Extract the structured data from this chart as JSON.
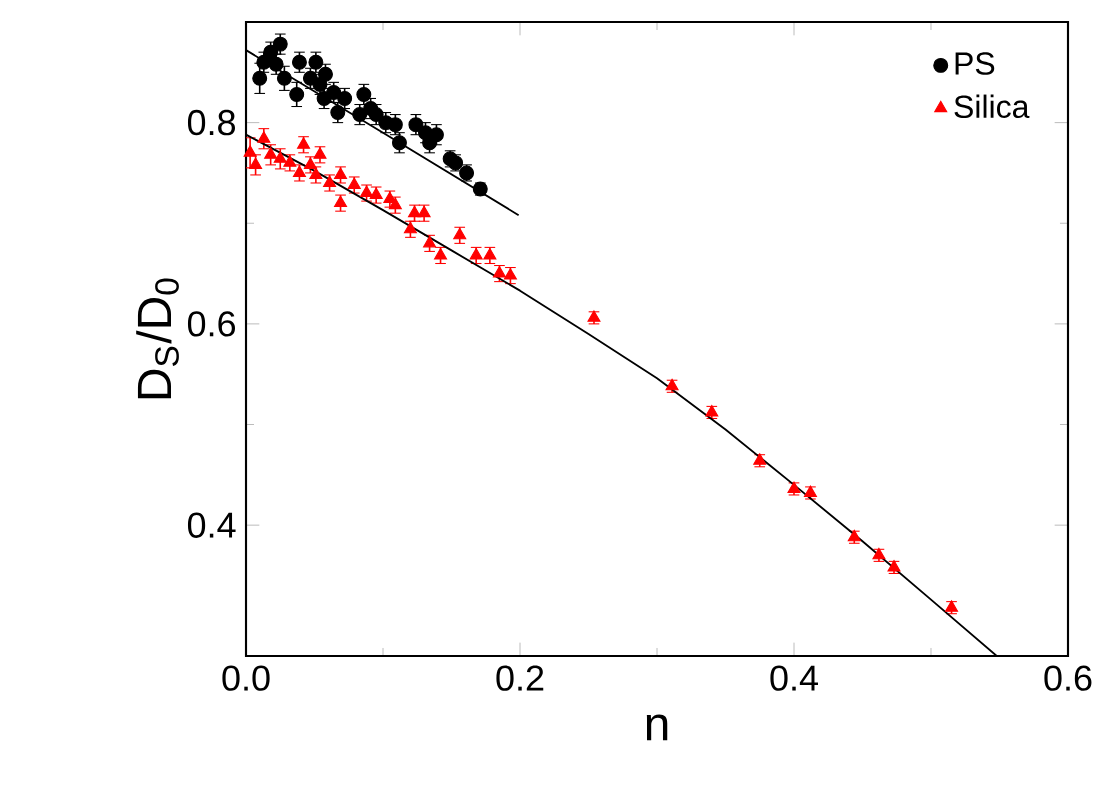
{
  "chart_data": {
    "type": "scatter",
    "xlabel": "n",
    "ylabel": "D$_{S}$/D$_{0}$",
    "xlim": [
      0,
      0.6
    ],
    "ylim": [
      0.27,
      0.9
    ],
    "xticks": [
      {
        "value": 0,
        "label": "0.0"
      },
      {
        "value": 0.2,
        "label": "0.2"
      },
      {
        "value": 0.4,
        "label": "0.4"
      },
      {
        "value": 0.6,
        "label": "0.6"
      }
    ],
    "yticks": [
      0.4,
      0.6,
      0.8
    ],
    "legend": "top right",
    "grid": false,
    "series": [
      {
        "name": "PS",
        "color": "#000000",
        "marker": "circle",
        "x": [
          0.013,
          0.01,
          0.018,
          0.025,
          0.022,
          0.028,
          0.037,
          0.039,
          0.047,
          0.051,
          0.054,
          0.058,
          0.064,
          0.057,
          0.067,
          0.072,
          0.086,
          0.083,
          0.091,
          0.095,
          0.102,
          0.109,
          0.112,
          0.124,
          0.131,
          0.134,
          0.139,
          0.149,
          0.153,
          0.161,
          0.171
        ],
        "values": [
          0.86,
          0.844,
          0.87,
          0.878,
          0.858,
          0.844,
          0.828,
          0.86,
          0.844,
          0.86,
          0.838,
          0.848,
          0.83,
          0.824,
          0.81,
          0.824,
          0.828,
          0.808,
          0.814,
          0.808,
          0.8,
          0.798,
          0.78,
          0.798,
          0.79,
          0.78,
          0.788,
          0.764,
          0.76,
          0.75,
          0.734
        ],
        "errors": [
          0.01,
          0.015,
          0.01,
          0.01,
          0.01,
          0.012,
          0.012,
          0.01,
          0.01,
          0.01,
          0.01,
          0.01,
          0.01,
          0.01,
          0.01,
          0.01,
          0.01,
          0.01,
          0.01,
          0.01,
          0.01,
          0.01,
          0.01,
          0.01,
          0.01,
          0.01,
          0.01,
          0.008,
          0.008,
          0.008,
          0.006
        ]
      },
      {
        "name": "Silica",
        "color": "#ff0000",
        "marker": "triangle",
        "x": [
          0.003,
          0.013,
          0.007,
          0.018,
          0.025,
          0.032,
          0.042,
          0.039,
          0.047,
          0.054,
          0.051,
          0.061,
          0.069,
          0.069,
          0.079,
          0.088,
          0.095,
          0.105,
          0.109,
          0.12,
          0.123,
          0.13,
          0.134,
          0.142,
          0.156,
          0.168,
          0.178,
          0.185,
          0.193,
          0.254,
          0.311,
          0.34,
          0.375,
          0.4,
          0.412,
          0.444,
          0.462,
          0.473,
          0.515
        ],
        "values": [
          0.77,
          0.784,
          0.758,
          0.768,
          0.764,
          0.76,
          0.778,
          0.75,
          0.758,
          0.768,
          0.748,
          0.74,
          0.748,
          0.72,
          0.738,
          0.73,
          0.728,
          0.724,
          0.718,
          0.694,
          0.71,
          0.71,
          0.68,
          0.668,
          0.688,
          0.668,
          0.668,
          0.65,
          0.648,
          0.606,
          0.538,
          0.512,
          0.464,
          0.436,
          0.432,
          0.388,
          0.37,
          0.358,
          0.318
        ],
        "errors": [
          0.015,
          0.01,
          0.01,
          0.01,
          0.01,
          0.008,
          0.008,
          0.008,
          0.008,
          0.008,
          0.008,
          0.008,
          0.008,
          0.008,
          0.008,
          0.008,
          0.008,
          0.008,
          0.008,
          0.008,
          0.008,
          0.008,
          0.008,
          0.008,
          0.008,
          0.008,
          0.008,
          0.008,
          0.008,
          0.006,
          0.006,
          0.006,
          0.006,
          0.006,
          0.006,
          0.006,
          0.006,
          0.006,
          0.006
        ]
      },
      {
        "type": "line",
        "color": "#000000",
        "marker": "none",
        "x": [
          0,
          0.1,
          0.199
        ],
        "values": [
          0.872,
          0.79,
          0.708
        ]
      },
      {
        "type": "line",
        "color": "#000000",
        "marker": "none",
        "x": [
          0,
          0.05,
          0.1,
          0.15,
          0.2,
          0.25,
          0.3,
          0.35,
          0.4,
          0.45,
          0.5,
          0.548
        ],
        "values": [
          0.788,
          0.752,
          0.713,
          0.673,
          0.633,
          0.59,
          0.546,
          0.495,
          0.44,
          0.384,
          0.326,
          0.27
        ]
      }
    ]
  }
}
